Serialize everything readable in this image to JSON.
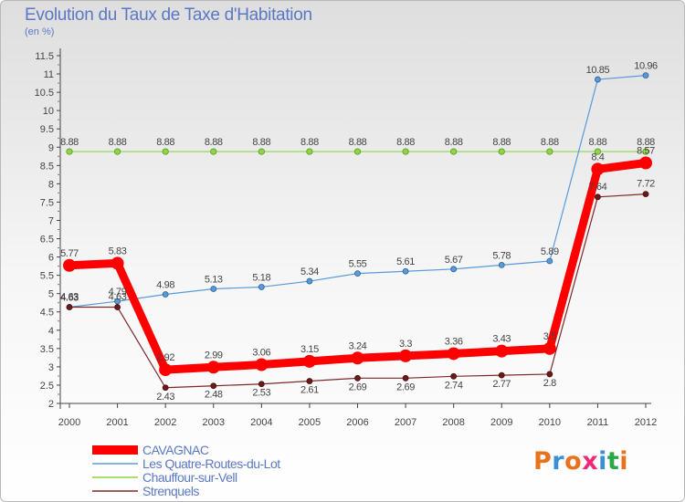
{
  "title": "Evolution du Taux de Taxe d'Habitation",
  "subtitle": "(en %)",
  "logo": {
    "text": "Proxiti",
    "colors": [
      "#e8731c",
      "#3a8fd6",
      "#e8731c",
      "#ee2a7b",
      "#3a8fd6",
      "#2aa845",
      "#e8731c"
    ]
  },
  "chart_data": {
    "type": "line",
    "title": "Evolution du Taux de Taxe d'Habitation",
    "ylabel": "(en %)",
    "xlabel": "",
    "x": [
      "2000",
      "2001",
      "2002",
      "2003",
      "2004",
      "2005",
      "2006",
      "2007",
      "2008",
      "2009",
      "2010",
      "2011",
      "2012"
    ],
    "ylim": [
      2,
      11.5
    ],
    "yticks": [
      "2",
      "2.5",
      "3",
      "3.5",
      "4",
      "4.5",
      "5",
      "5.5",
      "6",
      "6.5",
      "7",
      "7.5",
      "8",
      "8.5",
      "9",
      "9.5",
      "10",
      "10.5",
      "11",
      "11.5"
    ],
    "grid": false,
    "legend_position": "bottom-left",
    "series": [
      {
        "name": "CAVAGNAC",
        "color": "#ff0000",
        "values": [
          5.77,
          5.83,
          2.92,
          2.99,
          3.06,
          3.15,
          3.24,
          3.3,
          3.36,
          3.43,
          3.5,
          8.4,
          8.57
        ],
        "labels": [
          "5.77",
          "5.83",
          "2.92",
          "2.99",
          "3.06",
          "3.15",
          "3.24",
          "3.3",
          "3.36",
          "3.43",
          "3.5",
          "8.4",
          "8.57"
        ]
      },
      {
        "name": "Les Quatre-Routes-du-Lot",
        "color": "#4a90d0",
        "values": [
          4.63,
          4.79,
          4.98,
          5.13,
          5.18,
          5.34,
          5.55,
          5.61,
          5.67,
          5.78,
          5.89,
          10.85,
          10.96
        ],
        "labels": [
          "4.63",
          "4.79",
          "4.98",
          "5.13",
          "5.18",
          "5.34",
          "5.55",
          "5.61",
          "5.67",
          "5.78",
          "5.89",
          "10.85",
          "10.96"
        ]
      },
      {
        "name": "Chauffour-sur-Vell",
        "color": "#7ed321",
        "values": [
          8.88,
          8.88,
          8.88,
          8.88,
          8.88,
          8.88,
          8.88,
          8.88,
          8.88,
          8.88,
          8.88,
          8.88,
          8.88
        ],
        "labels": [
          "8.88",
          "8.88",
          "8.88",
          "8.88",
          "8.88",
          "8.88",
          "8.88",
          "8.88",
          "8.88",
          "8.88",
          "8.88",
          "8.88",
          "8.88"
        ]
      },
      {
        "name": "Strenquels",
        "color": "#7b1f1f",
        "values": [
          4.63,
          4.63,
          2.43,
          2.48,
          2.53,
          2.61,
          2.69,
          2.69,
          2.74,
          2.77,
          2.8,
          7.64,
          7.72
        ],
        "labels": [
          "4.63",
          "4.63",
          "2.43",
          "2.48",
          "2.53",
          "2.61",
          "2.69",
          "2.69",
          "2.74",
          "2.77",
          "2.8",
          "7.64",
          "7.72"
        ]
      }
    ]
  }
}
